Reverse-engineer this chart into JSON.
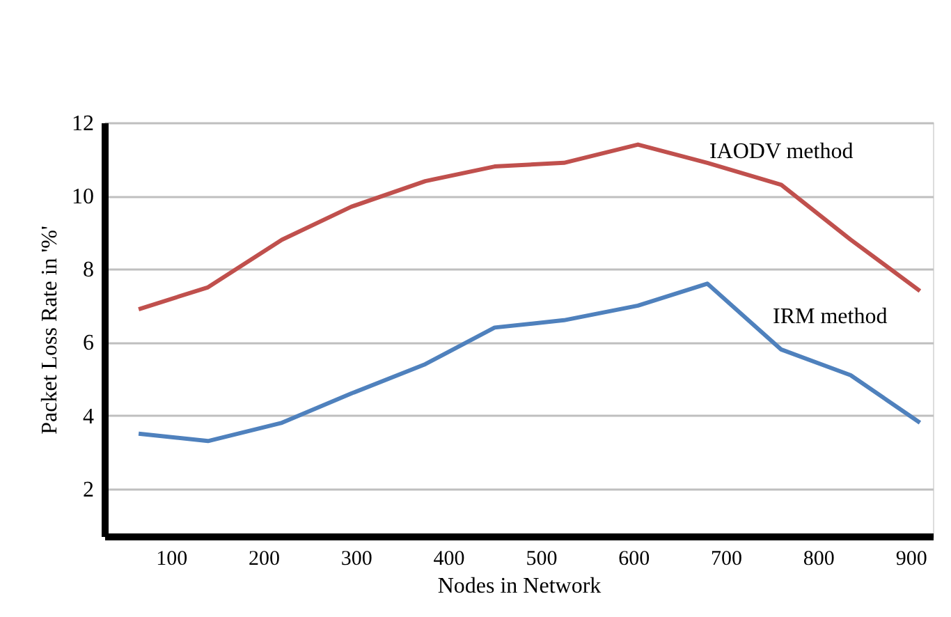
{
  "chart_data": {
    "type": "line",
    "xlabel": "Nodes in Network",
    "ylabel": "Packet Loss Rate  in  '%'",
    "x": [
      65,
      140,
      220,
      295,
      375,
      450,
      525,
      605,
      680,
      760,
      835,
      910
    ],
    "series": [
      {
        "name": "IAODV method",
        "color": "#c0504d",
        "values": [
          6.9,
          7.5,
          8.8,
          9.7,
          10.4,
          10.8,
          10.9,
          11.4,
          10.9,
          10.3,
          8.8,
          7.4
        ]
      },
      {
        "name": "IRM method",
        "color": "#4f81bd",
        "values": [
          3.5,
          3.3,
          3.8,
          4.6,
          5.4,
          6.4,
          6.6,
          7.0,
          7.6,
          5.8,
          5.1,
          3.8
        ]
      }
    ],
    "xlim": [
      28,
      924
    ],
    "xticks": [
      100,
      200,
      300,
      400,
      500,
      600,
      700,
      800,
      900
    ],
    "ylim": [
      0.7,
      12
    ],
    "yticks": [
      2,
      4,
      6,
      8,
      10,
      12
    ],
    "grid": "y",
    "legend": false,
    "marker": "none",
    "line_style": "solid"
  }
}
